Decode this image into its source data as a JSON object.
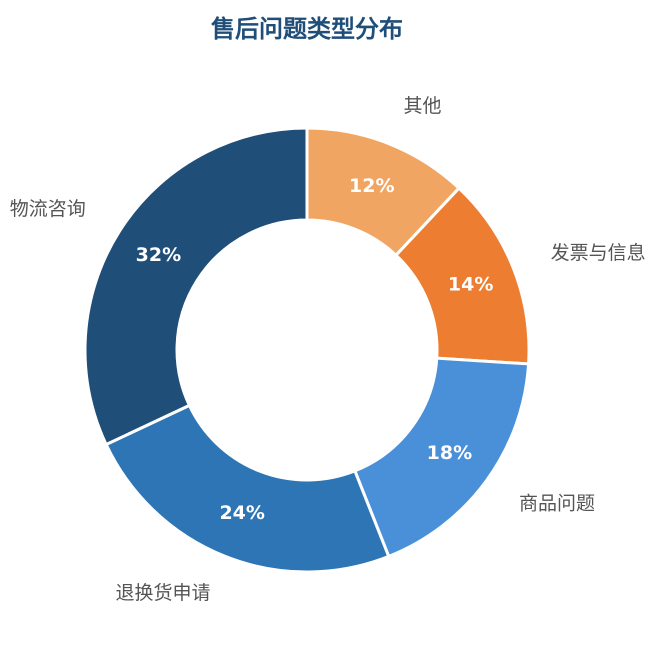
{
  "chart_data": {
    "type": "donut",
    "title": "售后问题类型分布",
    "categories": [
      "其他",
      "发票与信息",
      "商品问题",
      "退换货申请",
      "物流咨询"
    ],
    "values": [
      12,
      14,
      18,
      24,
      32
    ],
    "value_labels": [
      "12%",
      "14%",
      "18%",
      "24%",
      "32%"
    ],
    "colors": [
      "#f0a562",
      "#ed7d31",
      "#4a90d9",
      "#2e75b6",
      "#1f4e79"
    ]
  }
}
